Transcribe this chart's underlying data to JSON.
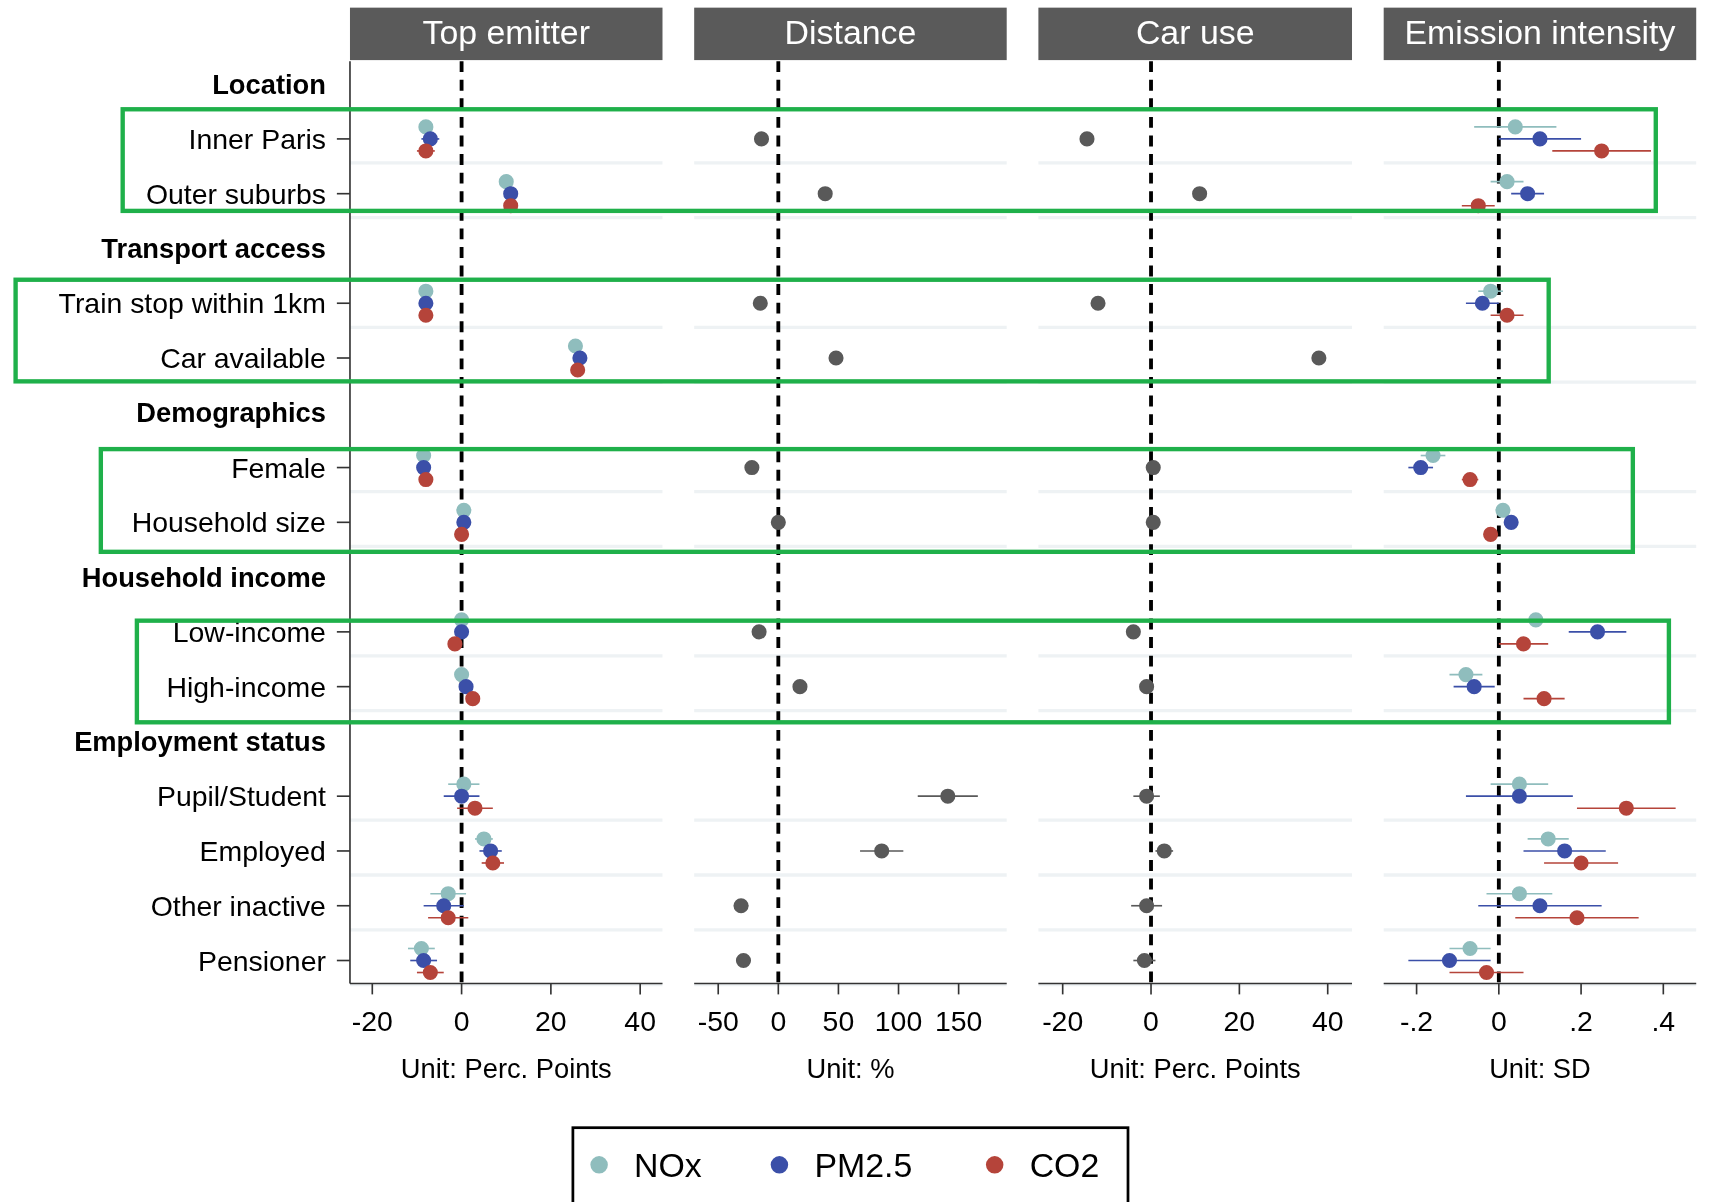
{
  "chart_data": [
    {
      "type": "scatter",
      "orientation": "horizontal",
      "title": "Top emitter",
      "xlabel": "Unit: Perc. Points",
      "marker": "circle",
      "legend": "bottom",
      "categories": [
        "Location",
        "Inner Paris",
        "Outer suburbs",
        "Transport access",
        "Train stop within 1km",
        "Car available",
        "Demographics",
        "Female",
        "Household size",
        "Household income",
        "Low-income",
        "High-income",
        "Employment status",
        "Pupil/Student",
        "Employed",
        "Other inactive",
        "Pensioner"
      ],
      "series": [
        {
          "name": "NOx",
          "color": "#8fbdbd",
          "values": [
            null,
            -8,
            10,
            null,
            -8,
            25.5,
            null,
            -8.5,
            0.5,
            null,
            0,
            0,
            null,
            0.5,
            5,
            -3,
            -9
          ],
          "errors": [
            null,
            1.5,
            1,
            null,
            1,
            1,
            null,
            1,
            1,
            null,
            1,
            1,
            null,
            3.5,
            2,
            4,
            3
          ]
        },
        {
          "name": "PM2.5",
          "color": "#3b4fa8",
          "values": [
            null,
            -7,
            11,
            null,
            -8,
            26.5,
            null,
            -8.5,
            0.5,
            null,
            0,
            1,
            null,
            0,
            6.5,
            -4,
            -8.5
          ],
          "errors": [
            null,
            2,
            1,
            null,
            1,
            1,
            null,
            1,
            1,
            null,
            1,
            1,
            null,
            4,
            2.5,
            4.5,
            3
          ]
        },
        {
          "name": "CO2",
          "color": "#b5443a",
          "values": [
            null,
            -8,
            11,
            null,
            -8,
            26,
            null,
            -8,
            0,
            null,
            -1.5,
            2.5,
            null,
            3,
            7,
            -3,
            -7
          ],
          "errors": [
            null,
            2,
            1,
            null,
            1,
            1,
            null,
            1,
            1,
            null,
            1,
            1,
            null,
            4,
            2.5,
            4.5,
            3
          ]
        }
      ],
      "xlim": [
        -25,
        45
      ],
      "xticks": [
        -20,
        0,
        20,
        40
      ],
      "ref_lines": [
        {
          "axis": "x",
          "value": 0,
          "line_style": "dashed"
        }
      ]
    },
    {
      "type": "scatter",
      "orientation": "horizontal",
      "title": "Distance",
      "xlabel": "Unit: %",
      "marker": "circle",
      "tick_labels": "x",
      "categories": [
        null,
        null,
        null,
        null,
        null,
        null,
        null,
        null,
        null,
        null,
        null,
        null,
        null,
        null,
        null,
        null,
        null
      ],
      "series": [
        {
          "color": "#595959",
          "values": [
            null,
            -14,
            39,
            null,
            -15,
            48,
            null,
            -22,
            0,
            null,
            -16,
            18,
            null,
            141,
            86,
            -31,
            -29
          ],
          "errors": [
            null,
            null,
            null,
            null,
            null,
            null,
            null,
            null,
            null,
            null,
            null,
            null,
            null,
            25,
            18,
            6,
            6
          ]
        }
      ],
      "xlim": [
        -70,
        190
      ],
      "xticks": [
        -50,
        0,
        50,
        100,
        150
      ],
      "ref_lines": [
        {
          "axis": "x",
          "value": 0,
          "line_style": "dashed"
        }
      ]
    },
    {
      "type": "scatter",
      "orientation": "horizontal",
      "title": "Car use",
      "xlabel": "Unit: Perc. Points",
      "marker": "circle",
      "tick_labels": "x",
      "categories": [
        null,
        null,
        null,
        null,
        null,
        null,
        null,
        null,
        null,
        null,
        null,
        null,
        null,
        null,
        null,
        null,
        null
      ],
      "series": [
        {
          "color": "#595959",
          "values": [
            null,
            -14.5,
            11,
            null,
            -12,
            38,
            null,
            0.5,
            0.5,
            null,
            -4,
            -1,
            null,
            -1,
            3,
            -1,
            -1.5
          ],
          "errors": [
            null,
            null,
            null,
            null,
            null,
            null,
            null,
            null,
            null,
            null,
            null,
            null,
            null,
            3,
            2,
            3.5,
            2.5
          ]
        }
      ],
      "xlim": [
        -25.5,
        45.5
      ],
      "xticks": [
        -20,
        0,
        20,
        40
      ],
      "ref_lines": [
        {
          "axis": "x",
          "value": 0,
          "line_style": "dashed"
        }
      ]
    },
    {
      "type": "scatter",
      "orientation": "horizontal",
      "title": "Emission intensity",
      "xlabel": "Unit: SD",
      "marker": "circle",
      "tick_labels": "x",
      "categories": [
        null,
        null,
        null,
        null,
        null,
        null,
        null,
        null,
        null,
        null,
        null,
        null,
        null,
        null,
        null,
        null,
        null
      ],
      "series": [
        {
          "color": "#8fbdbd",
          "values": [
            null,
            0.04,
            0.02,
            null,
            -0.02,
            null,
            null,
            -0.16,
            0.01,
            null,
            0.09,
            -0.08,
            null,
            0.05,
            0.12,
            0.05,
            -0.07
          ],
          "errors": [
            null,
            0.1,
            0.04,
            null,
            0.03,
            null,
            null,
            0.03,
            0.01,
            null,
            0.06,
            0.04,
            null,
            0.07,
            0.05,
            0.08,
            0.05
          ]
        },
        {
          "color": "#3b4fa8",
          "values": [
            null,
            0.1,
            0.07,
            null,
            -0.04,
            null,
            null,
            -0.19,
            0.03,
            null,
            0.24,
            -0.06,
            null,
            0.05,
            0.16,
            0.1,
            -0.12
          ],
          "errors": [
            null,
            0.1,
            0.04,
            null,
            0.04,
            null,
            null,
            0.03,
            0.01,
            null,
            0.07,
            0.05,
            null,
            0.13,
            0.1,
            0.15,
            0.1
          ]
        },
        {
          "color": "#b5443a",
          "values": [
            null,
            0.25,
            -0.05,
            null,
            0.02,
            null,
            null,
            -0.07,
            -0.02,
            null,
            0.06,
            0.11,
            null,
            0.31,
            0.2,
            0.19,
            -0.03
          ],
          "errors": [
            null,
            0.12,
            0.04,
            null,
            0.04,
            null,
            null,
            0.02,
            0.01,
            null,
            0.06,
            0.05,
            null,
            0.12,
            0.09,
            0.15,
            0.09
          ]
        }
      ],
      "xlim": [
        -0.28,
        0.48
      ],
      "xticks": [
        {
          "value": -0.2,
          "label": "-.2"
        },
        0,
        {
          "value": 0.2,
          "label": ".2"
        },
        {
          "value": 0.4,
          "label": ".4"
        }
      ],
      "ref_lines": [
        {
          "axis": "x",
          "value": 0,
          "line_style": "dashed"
        }
      ]
    }
  ]
}
